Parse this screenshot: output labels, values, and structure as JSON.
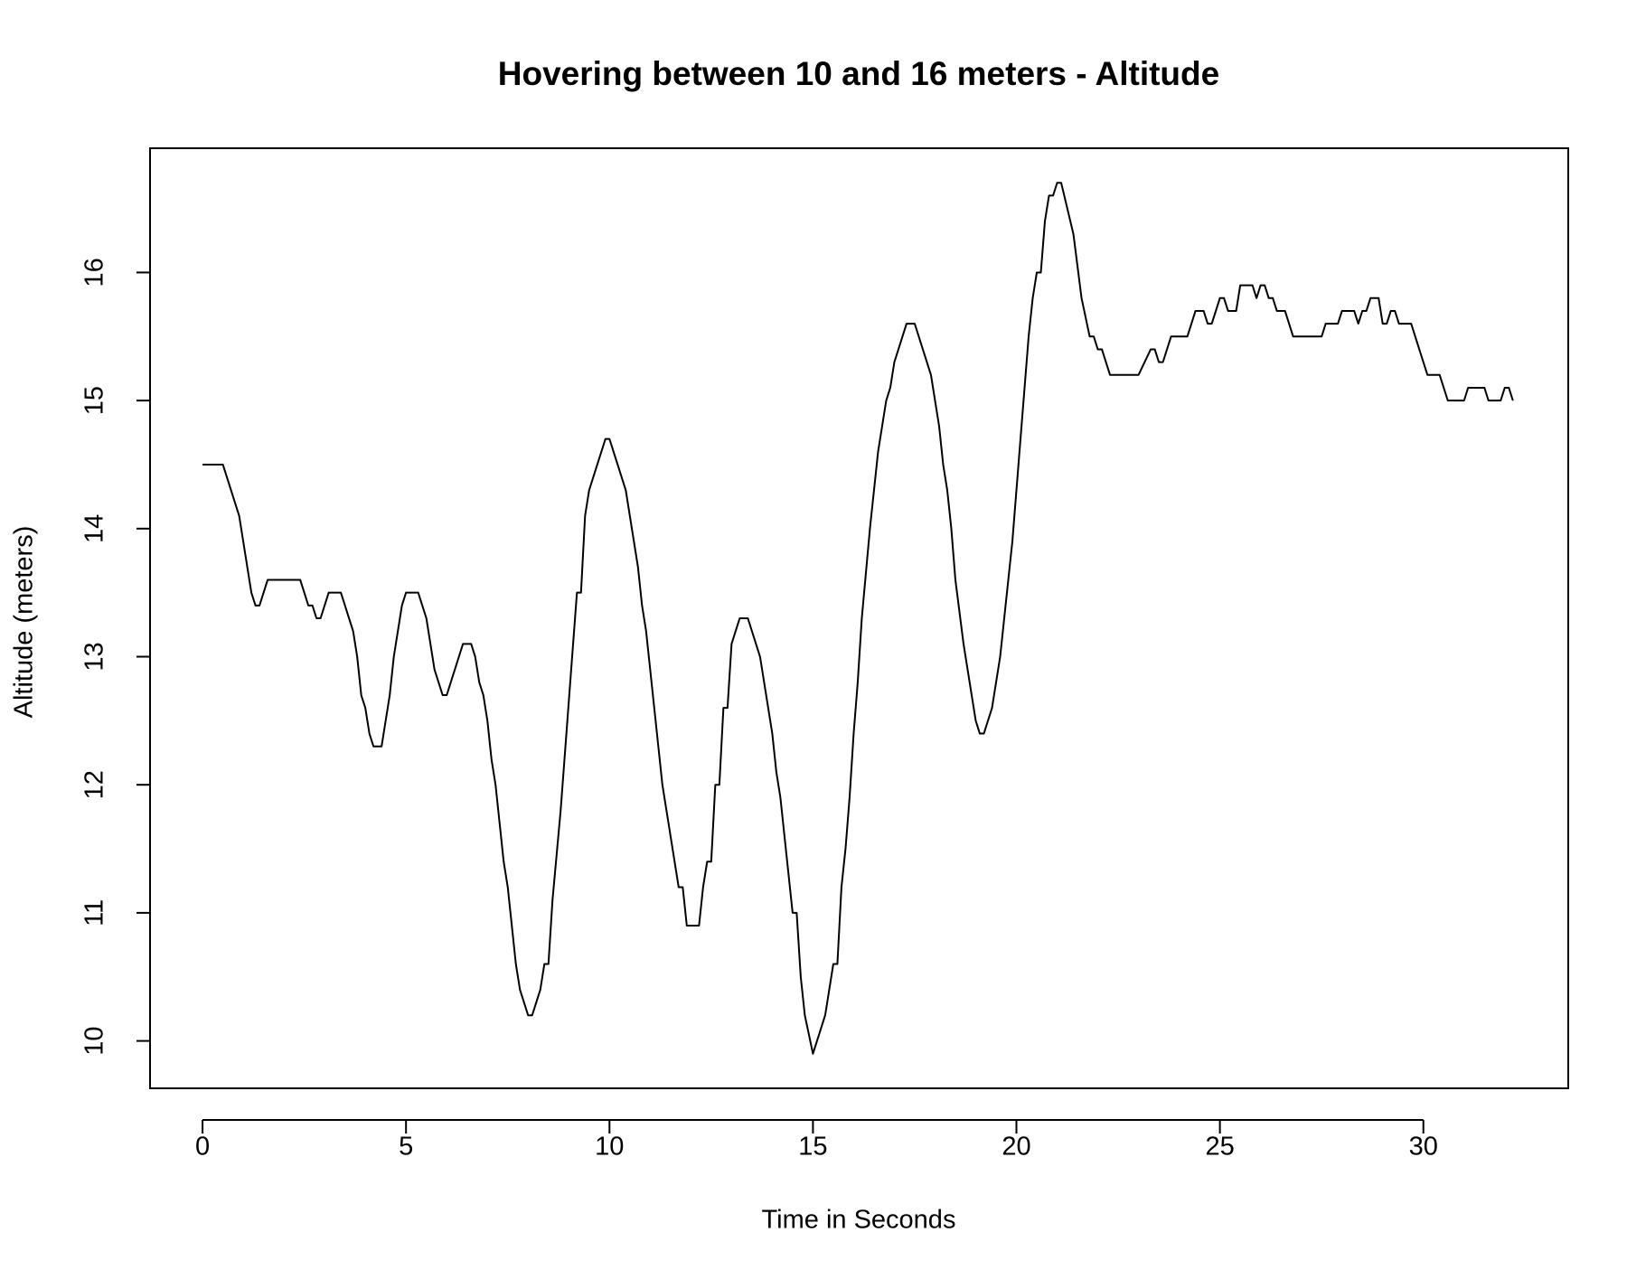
{
  "chart_data": {
    "type": "line",
    "title": "Hovering between 10 and 16 meters - Altitude",
    "xlabel": "Time in Seconds",
    "ylabel": "Altitude (meters)",
    "color": "#000000",
    "x": [
      0,
      0.4,
      0.5,
      0.9,
      1.0,
      1.2,
      1.3,
      1.4,
      1.6,
      2.4,
      2.6,
      2.7,
      2.8,
      2.9,
      3.1,
      3.4,
      3.7,
      3.8,
      3.9,
      4.0,
      4.1,
      4.2,
      4.4,
      4.6,
      4.7,
      4.9,
      5.0,
      5.3,
      5.5,
      5.7,
      5.9,
      6.0,
      6.4,
      6.6,
      6.7,
      6.8,
      6.9,
      7.0,
      7.1,
      7.2,
      7.4,
      7.5,
      7.7,
      7.8,
      8.0,
      8.1,
      8.3,
      8.4,
      8.5,
      8.6,
      8.8,
      9.2,
      9.3,
      9.4,
      9.5,
      9.9,
      10.0,
      10.4,
      10.7,
      10.8,
      10.9,
      11.3,
      11.4,
      11.7,
      11.8,
      11.9,
      12.2,
      12.3,
      12.4,
      12.5,
      12.6,
      12.7,
      12.8,
      12.9,
      13.0,
      13.2,
      13.4,
      13.7,
      14.0,
      14.1,
      14.2,
      14.5,
      14.6,
      14.7,
      14.8,
      15.0,
      15.3,
      15.5,
      15.6,
      15.7,
      15.8,
      15.9,
      16.0,
      16.1,
      16.2,
      16.4,
      16.6,
      16.8,
      16.9,
      17.0,
      17.3,
      17.5,
      17.9,
      18.1,
      18.2,
      18.3,
      18.4,
      18.5,
      18.7,
      18.9,
      19.0,
      19.1,
      19.2,
      19.4,
      19.6,
      19.9,
      20.1,
      20.3,
      20.4,
      20.5,
      20.6,
      20.7,
      20.8,
      20.9,
      21.0,
      21.1,
      21.4,
      21.6,
      21.8,
      21.9,
      22.0,
      22.1,
      22.3,
      23.0,
      23.3,
      23.4,
      23.5,
      23.6,
      23.8,
      24.2,
      24.4,
      24.6,
      24.7,
      24.8,
      25.0,
      25.1,
      25.2,
      25.4,
      25.5,
      25.8,
      25.9,
      26.0,
      26.1,
      26.2,
      26.3,
      26.4,
      26.6,
      26.8,
      27.5,
      27.6,
      27.9,
      28.0,
      28.3,
      28.4,
      28.5,
      28.6,
      28.7,
      28.9,
      29.0,
      29.1,
      29.2,
      29.3,
      29.4,
      29.7,
      29.8,
      30.0,
      30.1,
      30.4,
      30.6,
      31.0,
      31.1,
      31.5,
      31.6,
      31.9,
      32.0,
      32.1,
      32.2
    ],
    "values": [
      14.5,
      14.5,
      14.5,
      14.1,
      13.9,
      13.5,
      13.4,
      13.4,
      13.6,
      13.6,
      13.4,
      13.4,
      13.3,
      13.3,
      13.5,
      13.5,
      13.2,
      13.0,
      12.7,
      12.6,
      12.4,
      12.3,
      12.3,
      12.7,
      13.0,
      13.4,
      13.5,
      13.5,
      13.3,
      12.9,
      12.7,
      12.7,
      13.1,
      13.1,
      13.0,
      12.8,
      12.7,
      12.5,
      12.2,
      12.0,
      11.4,
      11.2,
      10.6,
      10.4,
      10.2,
      10.2,
      10.4,
      10.6,
      10.6,
      11.1,
      11.8,
      13.5,
      13.5,
      14.1,
      14.3,
      14.7,
      14.7,
      14.3,
      13.7,
      13.4,
      13.2,
      12.0,
      11.8,
      11.2,
      11.2,
      10.9,
      10.9,
      11.2,
      11.4,
      11.4,
      12.0,
      12.0,
      12.6,
      12.6,
      13.1,
      13.3,
      13.3,
      13.0,
      12.4,
      12.1,
      11.9,
      11.0,
      11.0,
      10.5,
      10.2,
      9.9,
      10.2,
      10.6,
      10.6,
      11.2,
      11.5,
      11.9,
      12.4,
      12.8,
      13.3,
      14.0,
      14.6,
      15.0,
      15.1,
      15.3,
      15.6,
      15.6,
      15.2,
      14.8,
      14.5,
      14.3,
      14.0,
      13.6,
      13.1,
      12.7,
      12.5,
      12.4,
      12.4,
      12.6,
      13.0,
      13.9,
      14.7,
      15.5,
      15.8,
      16.0,
      16.0,
      16.4,
      16.6,
      16.6,
      16.7,
      16.7,
      16.3,
      15.8,
      15.5,
      15.5,
      15.4,
      15.4,
      15.2,
      15.2,
      15.4,
      15.4,
      15.3,
      15.3,
      15.5,
      15.5,
      15.7,
      15.7,
      15.6,
      15.6,
      15.8,
      15.8,
      15.7,
      15.7,
      15.9,
      15.9,
      15.8,
      15.9,
      15.9,
      15.8,
      15.8,
      15.7,
      15.7,
      15.5,
      15.5,
      15.6,
      15.6,
      15.7,
      15.7,
      15.6,
      15.7,
      15.7,
      15.8,
      15.8,
      15.6,
      15.6,
      15.7,
      15.7,
      15.6,
      15.6,
      15.5,
      15.3,
      15.2,
      15.2,
      15.0,
      15.0,
      15.1,
      15.1,
      15.0,
      15.0,
      15.1,
      15.1,
      15.0
    ],
    "xlim": [
      -1.29,
      33.56
    ],
    "ylim": [
      9.63,
      16.97
    ],
    "xticks": [
      0,
      5,
      10,
      15,
      20,
      25,
      30
    ],
    "yticks": [
      10,
      11,
      12,
      13,
      14,
      15,
      16
    ]
  }
}
